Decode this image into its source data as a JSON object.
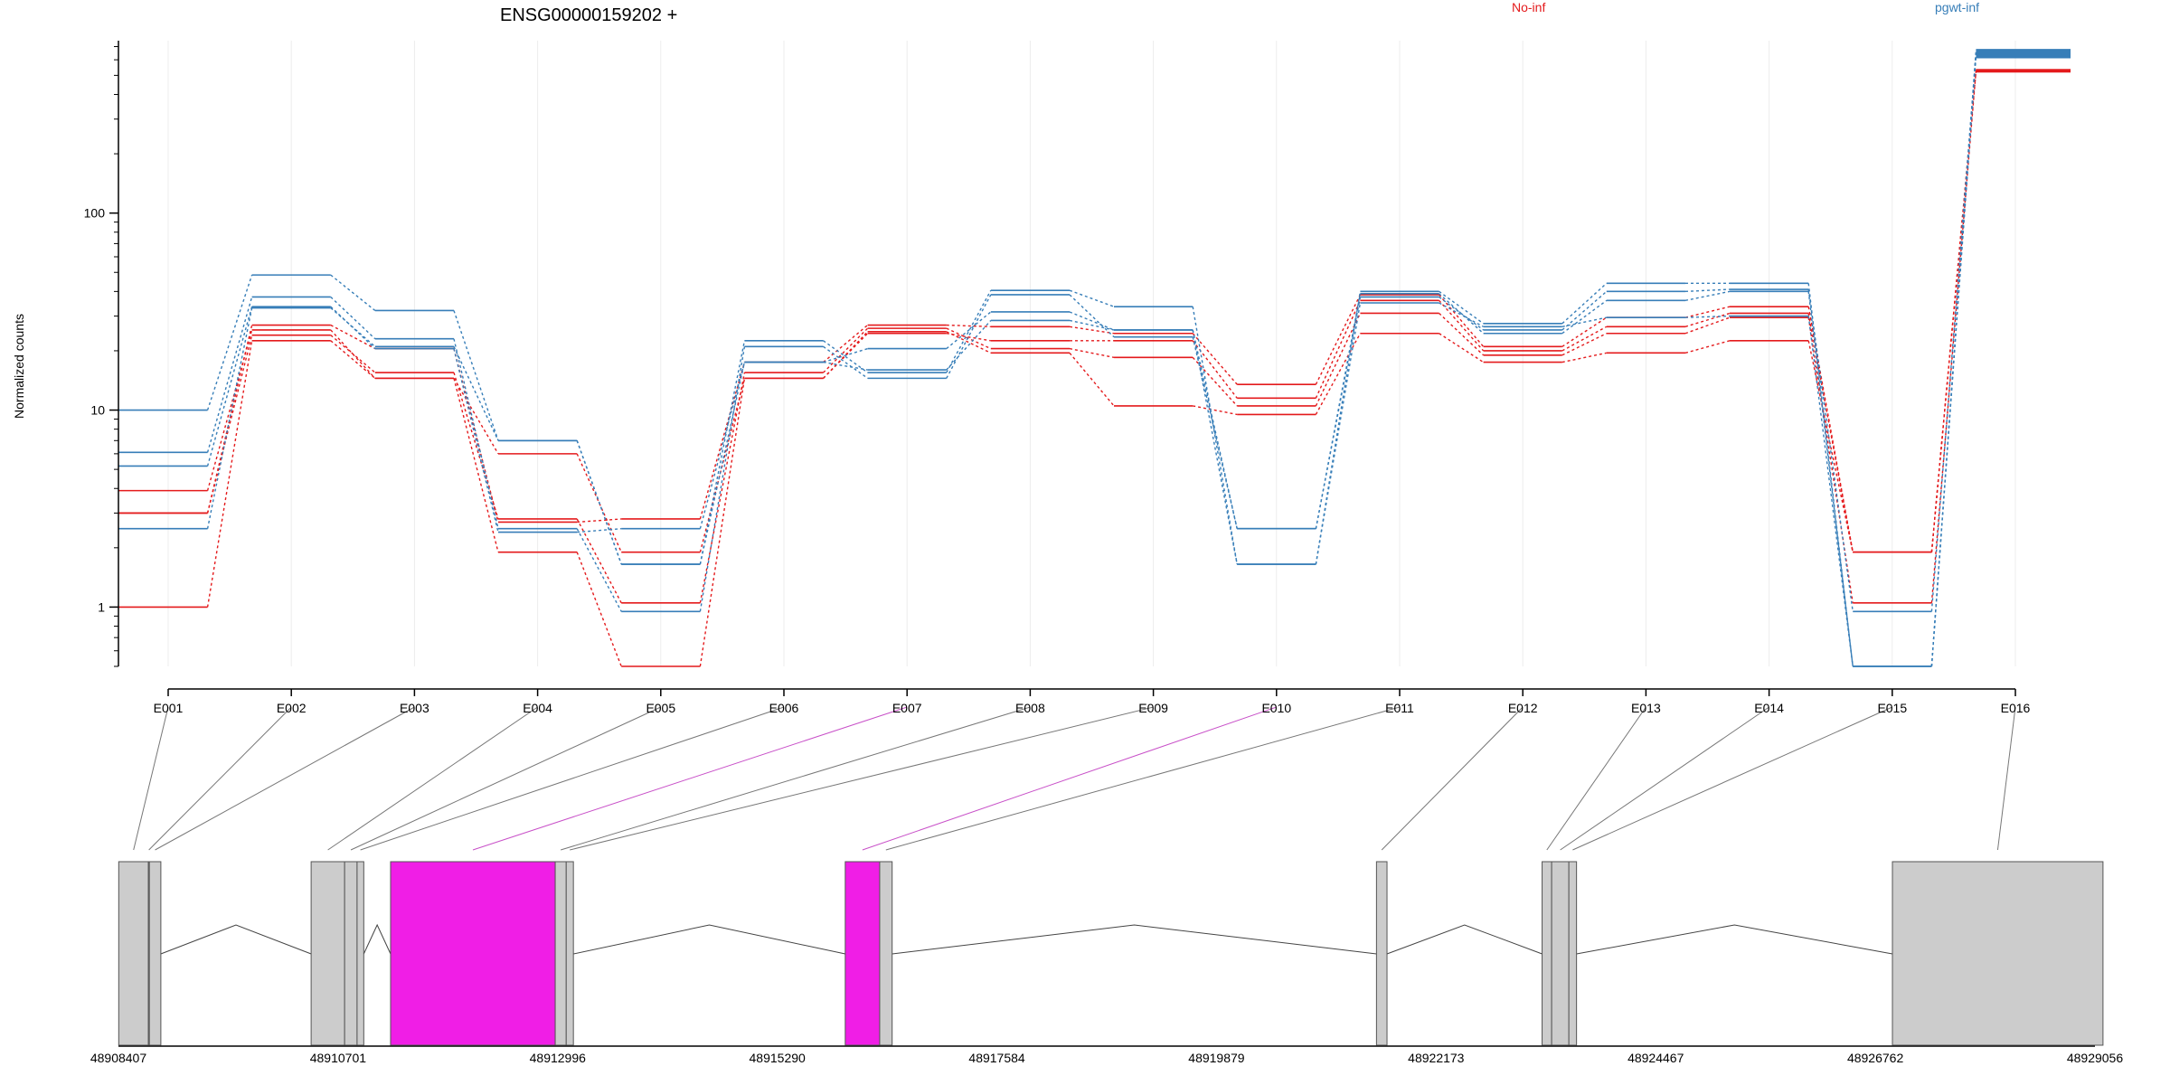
{
  "chart_data": {
    "type": "line",
    "title": "ENSG00000159202 +",
    "ylabel": "Normalized counts",
    "xlabel": "",
    "y_scale": "log",
    "ylim": [
      0.5,
      750
    ],
    "y_ticks": [
      1,
      10,
      100
    ],
    "y_tick_labels": [
      "1",
      "10",
      "100"
    ],
    "grid": "vertical",
    "colors": {
      "No-inf": "#e41a1c",
      "pgwt-inf": "#377eb8",
      "highlight": "#f01ee6",
      "exon_fill": "#cccccc"
    },
    "legend": [
      {
        "label": "No-inf",
        "color": "#e41a1c"
      },
      {
        "label": "pgwt-inf",
        "color": "#377eb8"
      }
    ],
    "categories": [
      "E001",
      "E002",
      "E003",
      "E004",
      "E005",
      "E006",
      "E007",
      "E008",
      "E009",
      "E010",
      "E011",
      "E012",
      "E013",
      "E014",
      "E015",
      "E016"
    ],
    "series": [
      {
        "group": "No-inf",
        "values": [
          1.0,
          22.5,
          14.5,
          1.9,
          0.5,
          14.5,
          25,
          19.5,
          10.5,
          9.5,
          24.5,
          17.5,
          19.5,
          22.5,
          1.9,
          530
        ]
      },
      {
        "group": "No-inf",
        "values": [
          3.0,
          24,
          15.5,
          2.8,
          1.05,
          15.5,
          26,
          20.5,
          18.5,
          10.5,
          31,
          19,
          24.5,
          29.5,
          1.05,
          525
        ]
      },
      {
        "group": "No-inf",
        "values": [
          3.9,
          25.5,
          14.5,
          6.0,
          1.9,
          14.5,
          24.5,
          22.5,
          22.5,
          11.5,
          36,
          20,
          26.5,
          31,
          1.9,
          530
        ]
      },
      {
        "group": "No-inf",
        "values": [
          3.0,
          27,
          20.5,
          2.7,
          2.8,
          17.5,
          27,
          26.5,
          24.5,
          13.5,
          38.5,
          21,
          29.5,
          33.5,
          1.9,
          528
        ]
      },
      {
        "group": "pgwt-inf",
        "values": [
          10.0,
          48.5,
          32,
          7.0,
          1.65,
          22.5,
          15.5,
          40.5,
          33.5,
          1.65,
          40,
          27.5,
          44,
          44,
          0.5,
          670
        ]
      },
      {
        "group": "pgwt-inf",
        "values": [
          6.1,
          37.5,
          23,
          2.5,
          0.95,
          21,
          14.5,
          38.5,
          23.5,
          2.5,
          37.5,
          25.5,
          40,
          41,
          0.95,
          640
        ]
      },
      {
        "group": "pgwt-inf",
        "values": [
          5.2,
          33.5,
          20.5,
          2.4,
          2.5,
          17.5,
          20.5,
          31.5,
          25.5,
          2.5,
          39,
          24.5,
          36,
          40,
          0.5,
          620
        ]
      },
      {
        "group": "pgwt-inf",
        "values": [
          2.5,
          33,
          21,
          7.0,
          1.65,
          17.5,
          16,
          28.5,
          25.5,
          1.65,
          35,
          26.5,
          29.5,
          30,
          0.5,
          650
        ]
      }
    ],
    "highlighted_exons": [
      "E007",
      "E010"
    ]
  },
  "gene_model": {
    "axis_ticks": [
      "48908407",
      "48910701",
      "48912996",
      "48915290",
      "48917584",
      "48919879",
      "48922173",
      "48924467",
      "48926762",
      "48929056"
    ],
    "exons": [
      {
        "id": "E001",
        "start": 48908410,
        "end": 48908720,
        "highlight": false
      },
      {
        "id": "E002",
        "start": 48908720,
        "end": 48908730,
        "highlight": false
      },
      {
        "id": "E003",
        "start": 48908730,
        "end": 48908850,
        "highlight": false
      },
      {
        "id": "E004",
        "start": 48910420,
        "end": 48910770,
        "highlight": false
      },
      {
        "id": "E005",
        "start": 48910770,
        "end": 48910900,
        "highlight": false
      },
      {
        "id": "E006",
        "start": 48910900,
        "end": 48910970,
        "highlight": false
      },
      {
        "id": "E007",
        "start": 48911250,
        "end": 48912970,
        "highlight": true
      },
      {
        "id": "E008",
        "start": 48912970,
        "end": 48913085,
        "highlight": false
      },
      {
        "id": "E009",
        "start": 48913085,
        "end": 48913160,
        "highlight": false
      },
      {
        "id": "E010",
        "start": 48916000,
        "end": 48916360,
        "highlight": true
      },
      {
        "id": "E011",
        "start": 48916360,
        "end": 48916490,
        "highlight": false
      },
      {
        "id": "E012",
        "start": 48921550,
        "end": 48921660,
        "highlight": false
      },
      {
        "id": "E013",
        "start": 48923280,
        "end": 48923380,
        "highlight": false
      },
      {
        "id": "E014",
        "start": 48923380,
        "end": 48923560,
        "highlight": false
      },
      {
        "id": "E015",
        "start": 48923560,
        "end": 48923640,
        "highlight": false
      },
      {
        "id": "E016",
        "start": 48926940,
        "end": 48929140,
        "highlight": false
      }
    ]
  }
}
